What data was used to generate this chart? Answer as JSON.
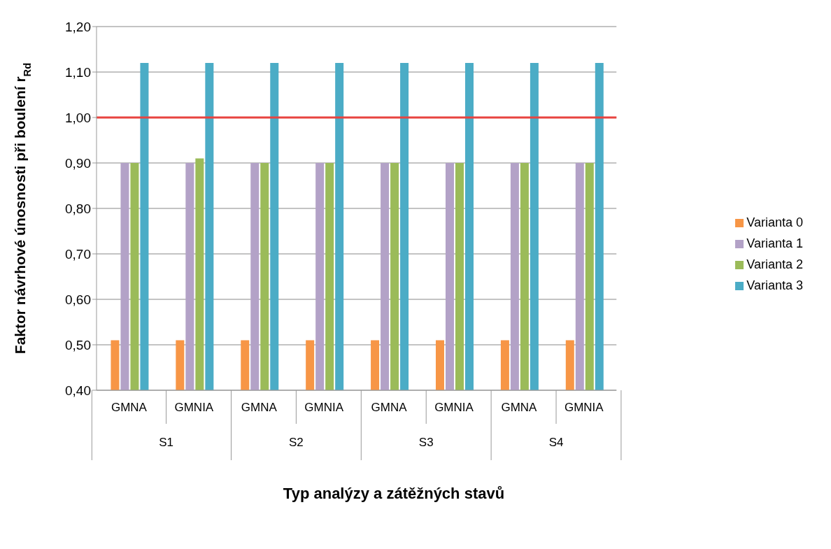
{
  "chart_data": {
    "type": "bar",
    "xlabel": "Typ analýzy a zátěžných stavů",
    "ylabel": "Faktor návrhové únosnosti při boulení r$_{Rd}$",
    "categories": [
      "GMNA",
      "GMNIA",
      "GMNA",
      "GMNIA",
      "GMNA",
      "GMNIA",
      "GMNA",
      "GMNIA"
    ],
    "annotations": [
      "S1",
      "S2",
      "S3",
      "S4"
    ],
    "series": [
      {
        "name": "Varianta 0",
        "color": "#f79646",
        "values": [
          0.51,
          0.51,
          0.51,
          0.51,
          0.51,
          0.51,
          0.51,
          0.51
        ]
      },
      {
        "name": "Varianta 1",
        "color": "#b3a2c7",
        "values": [
          0.9,
          0.9,
          0.9,
          0.9,
          0.9,
          0.9,
          0.9,
          0.9
        ]
      },
      {
        "name": "Varianta 2",
        "color": "#9bbb59",
        "values": [
          0.9,
          0.91,
          0.9,
          0.9,
          0.9,
          0.9,
          0.9,
          0.9
        ]
      },
      {
        "name": "Varianta 3",
        "color": "#4bacc6",
        "values": [
          1.12,
          1.12,
          1.12,
          1.12,
          1.12,
          1.12,
          1.12,
          1.12
        ]
      }
    ],
    "ylim": [
      0.4,
      1.2
    ],
    "yticks": [
      {
        "value": 0.4,
        "label": "0,40"
      },
      {
        "value": 0.5,
        "label": "0,50"
      },
      {
        "value": 0.6,
        "label": "0,60"
      },
      {
        "value": 0.7,
        "label": "0,70"
      },
      {
        "value": 0.8,
        "label": "0,80"
      },
      {
        "value": 0.9,
        "label": "0,90"
      },
      {
        "value": 1.0,
        "label": "1,00"
      },
      {
        "value": 1.1,
        "label": "1,10"
      },
      {
        "value": 1.2,
        "label": "1,20"
      }
    ],
    "ref_lines": [
      {
        "axis": "y",
        "value": 1.0,
        "color": "#e8433f"
      }
    ],
    "grid": "y",
    "legend": "right"
  }
}
